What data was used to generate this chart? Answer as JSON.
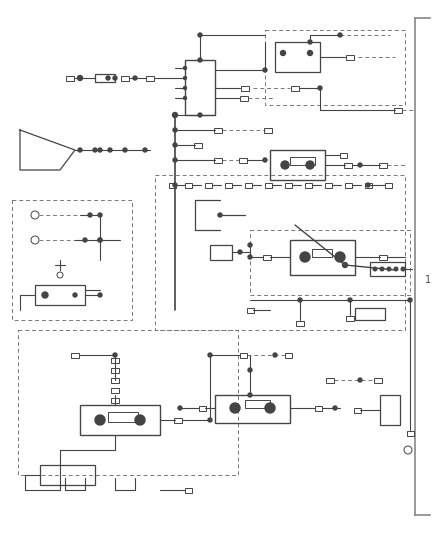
{
  "bg_color": "#ffffff",
  "line_color": "#444444",
  "dash_color": "#777777",
  "figsize": [
    4.38,
    5.33
  ],
  "dpi": 100
}
